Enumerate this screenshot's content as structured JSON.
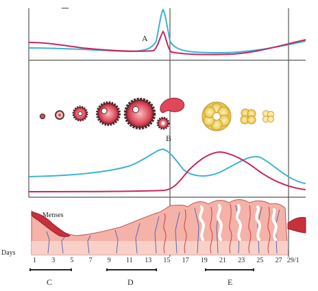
{
  "labels": {
    "A": "A",
    "B": "B",
    "C": "C",
    "D": "D",
    "E": "E",
    "menses": "Menses",
    "days": "Days"
  },
  "day_ticks": [
    "1",
    "3",
    "5",
    "7",
    "9",
    "11",
    "13",
    "15",
    "17",
    "19",
    "21",
    "23",
    "25",
    "27",
    "29/1"
  ],
  "colors": {
    "hormone_blue": "#3bb3d6",
    "hormone_pink": "#c8245a",
    "follicle_dark": "#5a3a3a",
    "follicle_red": "#e0485a",
    "corpus_yellow": "#f2d565",
    "endometrium": "#f0a8a0",
    "vessels_blue": "#4a5fb0",
    "border": "#555555"
  },
  "icons": {
    "follicle_stages": "follicle-development-icons",
    "corpus_luteum": "corpus-luteum-icon",
    "endometrium": "endometrium-lining-icon"
  }
}
